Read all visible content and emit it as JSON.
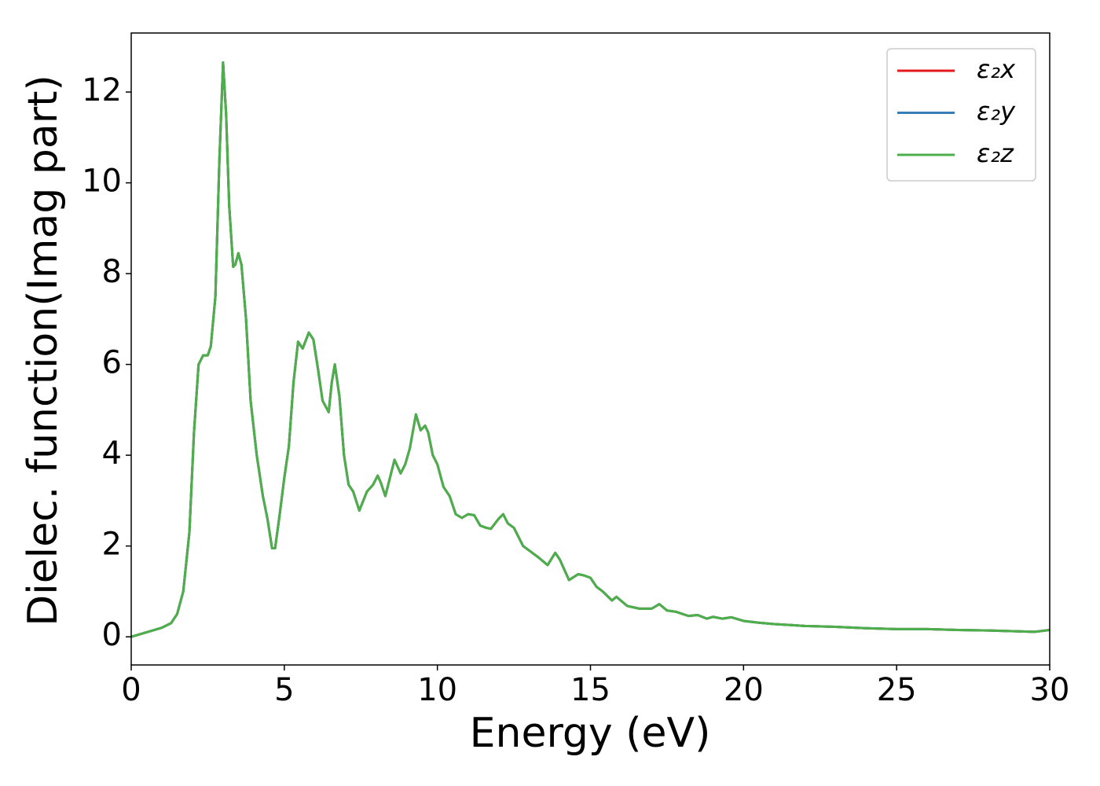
{
  "chart_data": {
    "type": "line",
    "xlabel": "Energy (eV)",
    "ylabel": "Dielec. function(Imag part)",
    "x": [
      0,
      0.5,
      1,
      1.3,
      1.5,
      1.7,
      1.9,
      2.05,
      2.2,
      2.35,
      2.5,
      2.6,
      2.75,
      2.88,
      3.0,
      3.1,
      3.2,
      3.33,
      3.4,
      3.5,
      3.6,
      3.75,
      3.9,
      4.1,
      4.3,
      4.45,
      4.6,
      4.7,
      4.85,
      5.0,
      5.15,
      5.3,
      5.45,
      5.6,
      5.8,
      5.95,
      6.1,
      6.25,
      6.45,
      6.55,
      6.65,
      6.8,
      6.95,
      7.1,
      7.25,
      7.45,
      7.7,
      7.9,
      8.05,
      8.15,
      8.3,
      8.45,
      8.6,
      8.8,
      8.95,
      9.1,
      9.3,
      9.45,
      9.6,
      9.7,
      9.85,
      10.0,
      10.2,
      10.4,
      10.6,
      10.8,
      11.0,
      11.2,
      11.4,
      11.6,
      11.75,
      12.0,
      12.15,
      12.3,
      12.5,
      12.8,
      13.0,
      13.3,
      13.6,
      13.85,
      14.0,
      14.3,
      14.6,
      14.8,
      15.0,
      15.2,
      15.4,
      15.7,
      15.85,
      16.2,
      16.6,
      17.0,
      17.25,
      17.5,
      17.8,
      18.2,
      18.5,
      18.8,
      19.0,
      19.3,
      19.6,
      20.0,
      20.5,
      21.0,
      21.5,
      22.0,
      23.0,
      24.0,
      25.0,
      26.0,
      27.0,
      28.0,
      29.0,
      29.5,
      30
    ],
    "series": [
      {
        "name": "ε₂x",
        "color": "#e41a1c",
        "values": [
          0,
          0.1,
          0.2,
          0.3,
          0.5,
          1.0,
          2.3,
          4.5,
          6.0,
          6.2,
          6.2,
          6.4,
          7.5,
          10.5,
          12.65,
          11.5,
          9.5,
          8.15,
          8.2,
          8.45,
          8.2,
          7.0,
          5.2,
          4.0,
          3.1,
          2.6,
          1.95,
          1.95,
          2.7,
          3.5,
          4.2,
          5.6,
          6.5,
          6.35,
          6.7,
          6.55,
          5.9,
          5.2,
          4.95,
          5.6,
          6.0,
          5.3,
          4.0,
          3.35,
          3.2,
          2.78,
          3.2,
          3.35,
          3.55,
          3.4,
          3.1,
          3.5,
          3.9,
          3.6,
          3.8,
          4.15,
          4.9,
          4.55,
          4.65,
          4.5,
          4.0,
          3.8,
          3.3,
          3.1,
          2.7,
          2.62,
          2.7,
          2.68,
          2.45,
          2.4,
          2.38,
          2.6,
          2.7,
          2.5,
          2.4,
          2.0,
          1.9,
          1.75,
          1.58,
          1.85,
          1.7,
          1.25,
          1.38,
          1.35,
          1.3,
          1.1,
          1.0,
          0.8,
          0.88,
          0.68,
          0.62,
          0.62,
          0.72,
          0.58,
          0.55,
          0.46,
          0.48,
          0.4,
          0.44,
          0.4,
          0.43,
          0.35,
          0.31,
          0.28,
          0.26,
          0.24,
          0.22,
          0.19,
          0.17,
          0.17,
          0.15,
          0.14,
          0.12,
          0.11,
          0.15
        ]
      },
      {
        "name": "ε₂y",
        "color": "#377eb8",
        "values": [
          0,
          0.1,
          0.2,
          0.3,
          0.5,
          1.0,
          2.3,
          4.5,
          6.0,
          6.2,
          6.2,
          6.4,
          7.5,
          10.5,
          12.65,
          11.5,
          9.5,
          8.15,
          8.2,
          8.45,
          8.2,
          7.0,
          5.2,
          4.0,
          3.1,
          2.6,
          1.95,
          1.95,
          2.7,
          3.5,
          4.2,
          5.6,
          6.5,
          6.35,
          6.7,
          6.55,
          5.9,
          5.2,
          4.95,
          5.6,
          6.0,
          5.3,
          4.0,
          3.35,
          3.2,
          2.78,
          3.2,
          3.35,
          3.55,
          3.4,
          3.1,
          3.5,
          3.9,
          3.6,
          3.8,
          4.15,
          4.9,
          4.55,
          4.65,
          4.5,
          4.0,
          3.8,
          3.3,
          3.1,
          2.7,
          2.62,
          2.7,
          2.68,
          2.45,
          2.4,
          2.38,
          2.6,
          2.7,
          2.5,
          2.4,
          2.0,
          1.9,
          1.75,
          1.58,
          1.85,
          1.7,
          1.25,
          1.38,
          1.35,
          1.3,
          1.1,
          1.0,
          0.8,
          0.88,
          0.68,
          0.62,
          0.62,
          0.72,
          0.58,
          0.55,
          0.46,
          0.48,
          0.4,
          0.44,
          0.4,
          0.43,
          0.35,
          0.31,
          0.28,
          0.26,
          0.24,
          0.22,
          0.19,
          0.17,
          0.17,
          0.15,
          0.14,
          0.12,
          0.11,
          0.15
        ]
      },
      {
        "name": "ε₂z",
        "color": "#4daf4a",
        "values": [
          0,
          0.1,
          0.2,
          0.3,
          0.5,
          1.0,
          2.3,
          4.5,
          6.0,
          6.2,
          6.2,
          6.4,
          7.5,
          10.5,
          12.65,
          11.5,
          9.5,
          8.15,
          8.2,
          8.45,
          8.2,
          7.0,
          5.2,
          4.0,
          3.1,
          2.6,
          1.95,
          1.95,
          2.7,
          3.5,
          4.2,
          5.6,
          6.5,
          6.35,
          6.7,
          6.55,
          5.9,
          5.2,
          4.95,
          5.6,
          6.0,
          5.3,
          4.0,
          3.35,
          3.2,
          2.78,
          3.2,
          3.35,
          3.55,
          3.4,
          3.1,
          3.5,
          3.9,
          3.6,
          3.8,
          4.15,
          4.9,
          4.55,
          4.65,
          4.5,
          4.0,
          3.8,
          3.3,
          3.1,
          2.7,
          2.62,
          2.7,
          2.68,
          2.45,
          2.4,
          2.38,
          2.6,
          2.7,
          2.5,
          2.4,
          2.0,
          1.9,
          1.75,
          1.58,
          1.85,
          1.7,
          1.25,
          1.38,
          1.35,
          1.3,
          1.1,
          1.0,
          0.8,
          0.88,
          0.68,
          0.62,
          0.62,
          0.72,
          0.58,
          0.55,
          0.46,
          0.48,
          0.4,
          0.44,
          0.4,
          0.43,
          0.35,
          0.31,
          0.28,
          0.26,
          0.24,
          0.22,
          0.19,
          0.17,
          0.17,
          0.15,
          0.14,
          0.12,
          0.11,
          0.15
        ]
      }
    ],
    "xlim": [
      0,
      30
    ],
    "xticks": [
      0,
      5,
      10,
      15,
      20,
      25,
      30
    ],
    "ylim": [
      -0.62,
      13.3
    ],
    "yticks": [
      0,
      2,
      4,
      6,
      8,
      10,
      12
    ],
    "grid": false,
    "legend": "upper right"
  }
}
